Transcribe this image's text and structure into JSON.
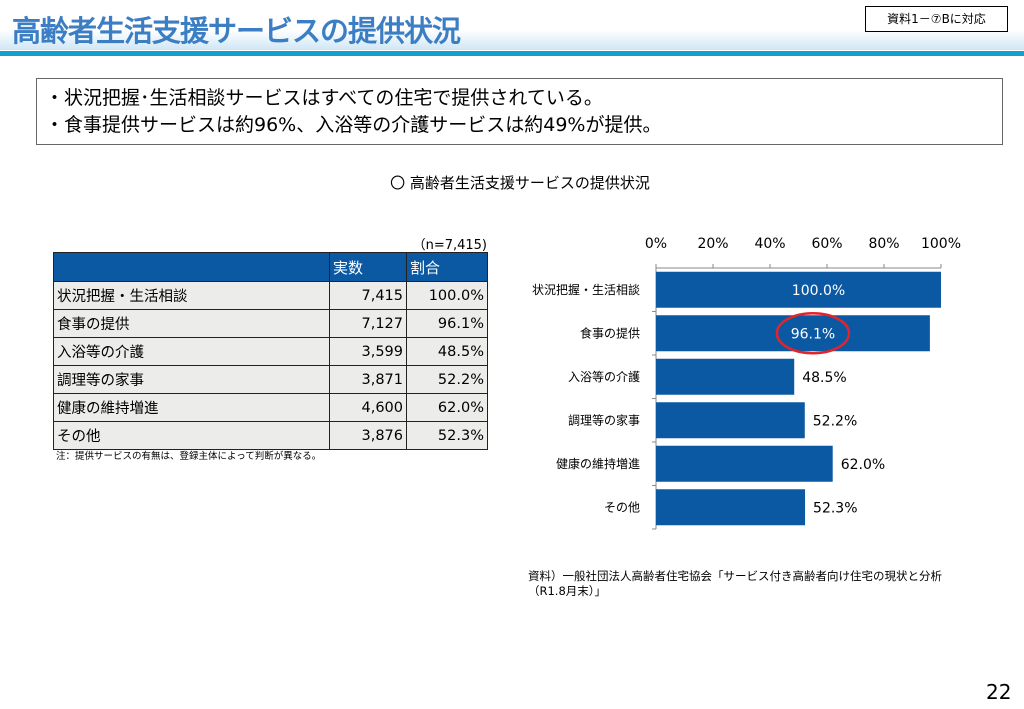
{
  "header": {
    "title": "高齢者生活支援サービスの提供状況",
    "reference": "資料1－⑦Bに対応"
  },
  "bullets": [
    "・状況把握･生活相談サービスはすべての住宅で提供されている。",
    "・食事提供サービスは約96%、入浴等の介護サービスは約49%が提供。"
  ],
  "subtitle": "〇 高齢者生活支援サービスの提供状況",
  "table": {
    "n_label": "（n=7,415)",
    "headers": [
      "",
      "実数",
      "割合"
    ],
    "rows": [
      [
        "状況把握・生活相談",
        "7,415",
        "100.0%"
      ],
      [
        "食事の提供",
        "7,127",
        "96.1%"
      ],
      [
        "入浴等の介護",
        "3,599",
        "48.5%"
      ],
      [
        "調理等の家事",
        "3,871",
        "52.2%"
      ],
      [
        "健康の維持増進",
        "4,600",
        "62.0%"
      ],
      [
        "その他",
        "3,876",
        "52.3%"
      ]
    ],
    "note": "注：提供サービスの有無は、登録主体によって判断が異なる。"
  },
  "chart_data": {
    "type": "bar",
    "orientation": "horizontal",
    "categories": [
      "状況把握・生活相談",
      "食事の提供",
      "入浴等の介護",
      "調理等の家事",
      "健康の維持増進",
      "その他"
    ],
    "values": [
      100.0,
      96.1,
      48.5,
      52.2,
      62.0,
      52.3
    ],
    "labels": [
      "100.0%",
      "96.1%",
      "48.5%",
      "52.2%",
      "62.0%",
      "52.3%"
    ],
    "xlim": [
      0,
      100
    ],
    "xticks": [
      "0%",
      "20%",
      "40%",
      "60%",
      "80%",
      "100%"
    ],
    "bar_color": "#0b59a3",
    "highlight": "96.1%",
    "highlight_color": "#e0252b"
  },
  "source": [
    "資料）一般社団法人高齢者住宅協会「サービス付き高齢者向け住宅の現状と分析",
    "（R1.8月末）」"
  ],
  "page_number": "22"
}
